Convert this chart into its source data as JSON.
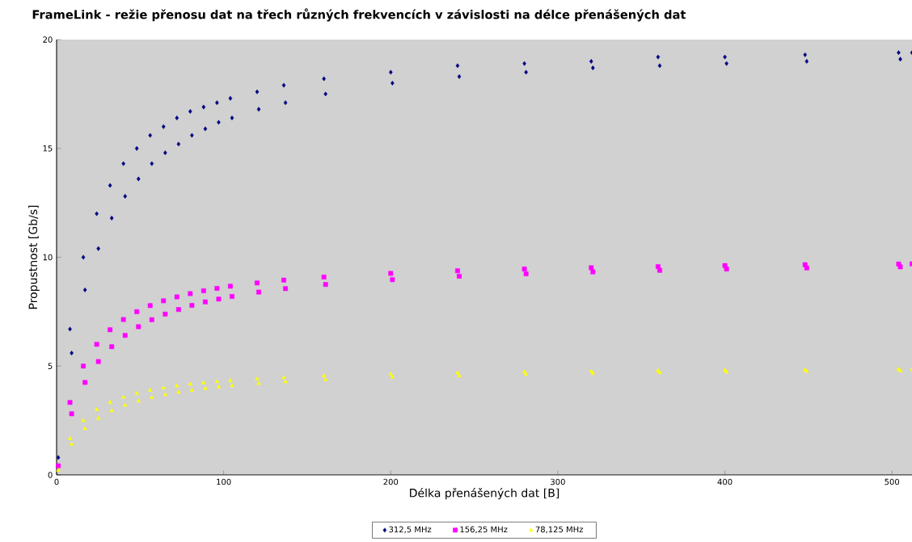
{
  "chart_data": {
    "type": "scatter",
    "title": "FrameLink - režie přenosu dat na třech různých frekvencích v závislosti na délce přenášených dat",
    "xlabel": "Délka přenášených dat [B]",
    "ylabel": "Propustnost [Gb/s]",
    "x": [
      1,
      8,
      9,
      16,
      17,
      24,
      25,
      32,
      33,
      40,
      41,
      48,
      49,
      56,
      57,
      64,
      65,
      72,
      73,
      80,
      81,
      88,
      89,
      96,
      97,
      104,
      105,
      120,
      121,
      136,
      137,
      160,
      161,
      200,
      201,
      240,
      241,
      280,
      281,
      320,
      321,
      360,
      361,
      400,
      401,
      448,
      449,
      504,
      505,
      512
    ],
    "series": [
      {
        "name": "312,5 MHz",
        "color": "#000080",
        "marker": "diamond",
        "values": [
          0.8,
          6.7,
          5.6,
          10,
          8.5,
          12,
          10.4,
          13.3,
          11.8,
          14.3,
          12.8,
          15,
          13.6,
          15.6,
          14.3,
          16,
          14.8,
          16.4,
          15.2,
          16.7,
          15.6,
          16.9,
          15.9,
          17.1,
          16.2,
          17.3,
          16.4,
          17.6,
          16.8,
          17.9,
          17.1,
          18.2,
          17.5,
          18.5,
          18,
          18.8,
          18.3,
          18.9,
          18.5,
          19,
          18.7,
          19.2,
          18.8,
          19.2,
          18.9,
          19.3,
          19,
          19.4,
          19.1,
          19.4
        ]
      },
      {
        "name": "156,25 MHz",
        "color": "#ff00ff",
        "marker": "square",
        "values": [
          0.42,
          3.33,
          2.81,
          5,
          4.25,
          6,
          5.21,
          6.67,
          5.89,
          7.14,
          6.41,
          7.5,
          6.81,
          7.78,
          7.13,
          8,
          7.39,
          8.18,
          7.6,
          8.33,
          7.79,
          8.46,
          7.95,
          8.57,
          8.08,
          8.67,
          8.2,
          8.82,
          8.4,
          8.95,
          8.56,
          9.09,
          8.75,
          9.26,
          8.97,
          9.38,
          9.13,
          9.46,
          9.24,
          9.52,
          9.33,
          9.57,
          9.4,
          9.62,
          9.46,
          9.66,
          9.51,
          9.69,
          9.56,
          9.7
        ]
      },
      {
        "name": "78,125 MHz",
        "color": "#ffff00",
        "marker": "triangle",
        "values": [
          0.21,
          1.67,
          1.41,
          2.5,
          2.13,
          3,
          2.6,
          3.33,
          2.95,
          3.57,
          3.2,
          3.75,
          3.4,
          3.89,
          3.56,
          4,
          3.69,
          4.09,
          3.8,
          4.17,
          3.89,
          4.23,
          3.97,
          4.29,
          4.04,
          4.33,
          4.1,
          4.41,
          4.2,
          4.47,
          4.28,
          4.55,
          4.38,
          4.63,
          4.49,
          4.69,
          4.56,
          4.73,
          4.62,
          4.76,
          4.67,
          4.79,
          4.7,
          4.81,
          4.73,
          4.83,
          4.76,
          4.85,
          4.78,
          4.85
        ]
      }
    ],
    "xlim": [
      0,
      512
    ],
    "ylim": [
      0,
      20
    ],
    "xticks": [
      0,
      100,
      200,
      300,
      400,
      500
    ],
    "yticks": [
      0,
      5,
      10,
      15,
      20
    ],
    "legend": "bottom"
  }
}
